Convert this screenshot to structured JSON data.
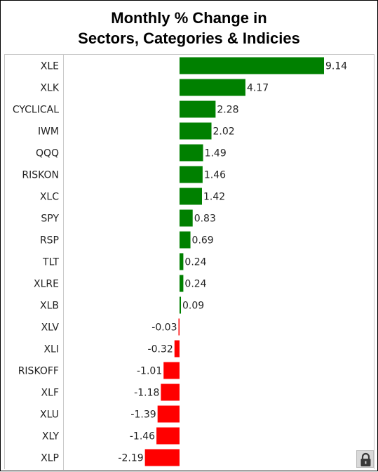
{
  "chart_data": {
    "type": "bar",
    "orientation": "horizontal",
    "title_line1": "Monthly % Change in",
    "title_line2": "Sectors, Categories & Indicies",
    "categories": [
      "XLE",
      "XLK",
      "CYCLICAL",
      "IWM",
      "QQQ",
      "RISKON",
      "XLC",
      "SPY",
      "RSP",
      "TLT",
      "XLRE",
      "XLB",
      "XLV",
      "XLI",
      "RISKOFF",
      "XLF",
      "XLU",
      "XLY",
      "XLP"
    ],
    "values": [
      9.14,
      4.17,
      2.28,
      2.02,
      1.49,
      1.46,
      1.42,
      0.83,
      0.69,
      0.24,
      0.24,
      0.09,
      -0.03,
      -0.32,
      -1.01,
      -1.18,
      -1.39,
      -1.46,
      -2.19
    ],
    "value_labels": [
      "9.14",
      "4.17",
      "2.28",
      "2.02",
      "1.49",
      "1.46",
      "1.42",
      "0.83",
      "0.69",
      "0.24",
      "0.24",
      "0.09",
      "-0.03",
      "-0.32",
      "-1.01",
      "-1.18",
      "-1.39",
      "-1.46",
      "-2.19"
    ],
    "positive_color": "#008000",
    "negative_color": "#ff0000",
    "xlim": [
      -7,
      9.14
    ],
    "grid": false,
    "legend": "none"
  },
  "icons": {
    "lock": "lock-icon"
  }
}
